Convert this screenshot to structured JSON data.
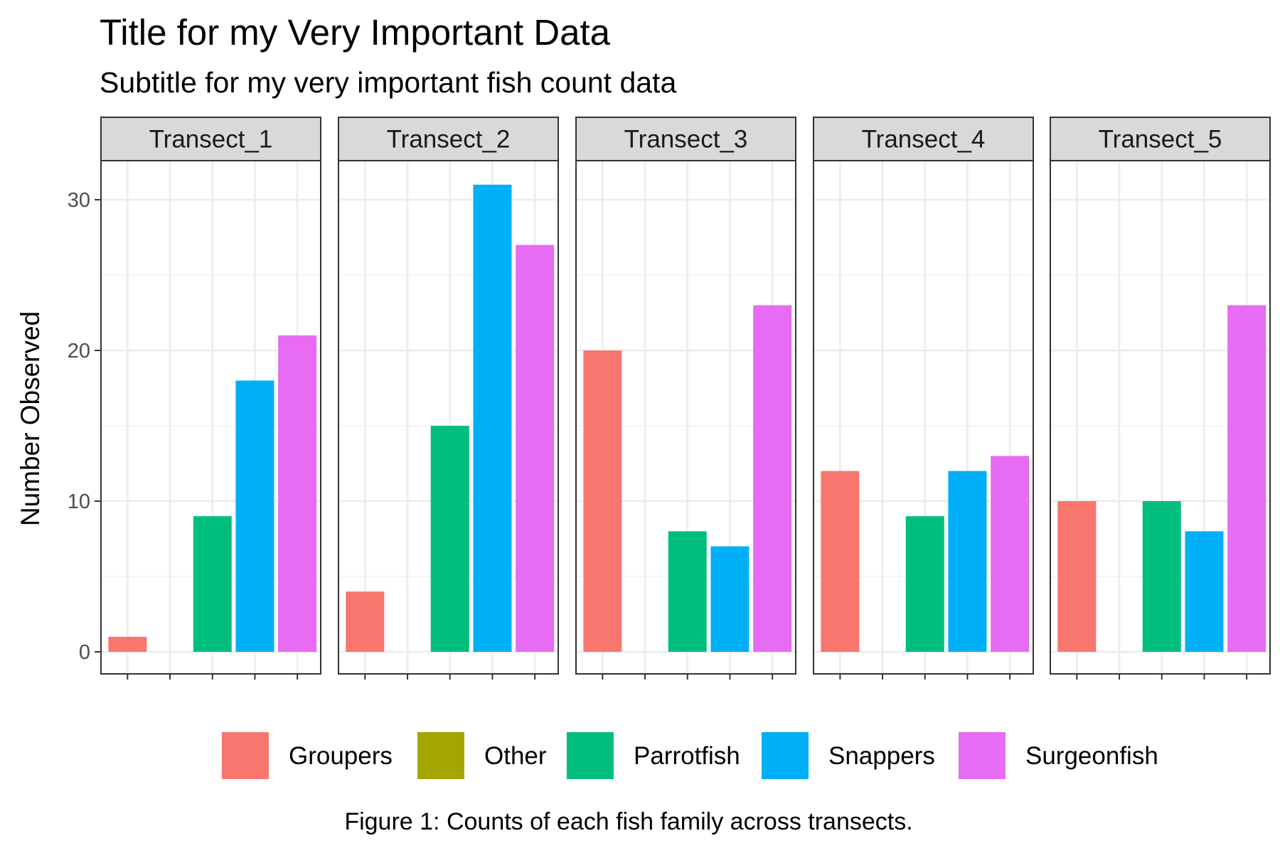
{
  "chart_data": {
    "type": "bar",
    "title": "Title for my Very Important Data",
    "subtitle": "Subtitle for my very important fish count data",
    "ylabel": "Number Observed",
    "xlabel": "",
    "caption": "Figure 1: Counts of each fish family across transects.",
    "ylim": [
      0,
      33
    ],
    "yticks": [
      0,
      10,
      20,
      30
    ],
    "grid": true,
    "legend_position": "bottom",
    "categories": [
      "Groupers",
      "Other",
      "Parrotfish",
      "Snappers",
      "Surgeonfish"
    ],
    "colors": {
      "Groupers": "#F8766D",
      "Other": "#A3A500",
      "Parrotfish": "#00BF7D",
      "Snappers": "#00B0F6",
      "Surgeonfish": "#E76BF3"
    },
    "facets": [
      {
        "name": "Transect_1",
        "values": [
          1,
          0,
          9,
          18,
          21
        ]
      },
      {
        "name": "Transect_2",
        "values": [
          4,
          0,
          15,
          31,
          27
        ]
      },
      {
        "name": "Transect_3",
        "values": [
          20,
          0,
          8,
          7,
          23
        ]
      },
      {
        "name": "Transect_4",
        "values": [
          12,
          0,
          9,
          12,
          13
        ]
      },
      {
        "name": "Transect_5",
        "values": [
          10,
          0,
          10,
          8,
          23
        ]
      }
    ]
  }
}
